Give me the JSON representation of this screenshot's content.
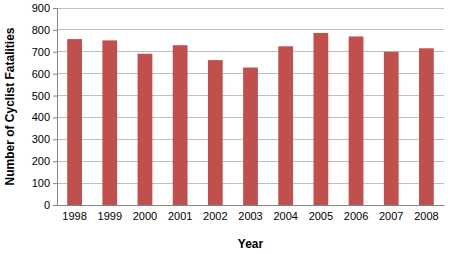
{
  "chart_data": {
    "type": "bar",
    "x_label": "Year",
    "y_label": "Number of Cyclist Fatalities",
    "categories": [
      "1998",
      "1999",
      "2000",
      "2001",
      "2002",
      "2003",
      "2004",
      "2005",
      "2006",
      "2007",
      "2008"
    ],
    "values": [
      758,
      752,
      691,
      730,
      662,
      628,
      725,
      786,
      770,
      700,
      716
    ],
    "color": "#c0504d",
    "ylim": [
      0,
      900
    ],
    "yticks": [
      0,
      100,
      200,
      300,
      400,
      500,
      600,
      700,
      800,
      900
    ],
    "grid": true
  }
}
